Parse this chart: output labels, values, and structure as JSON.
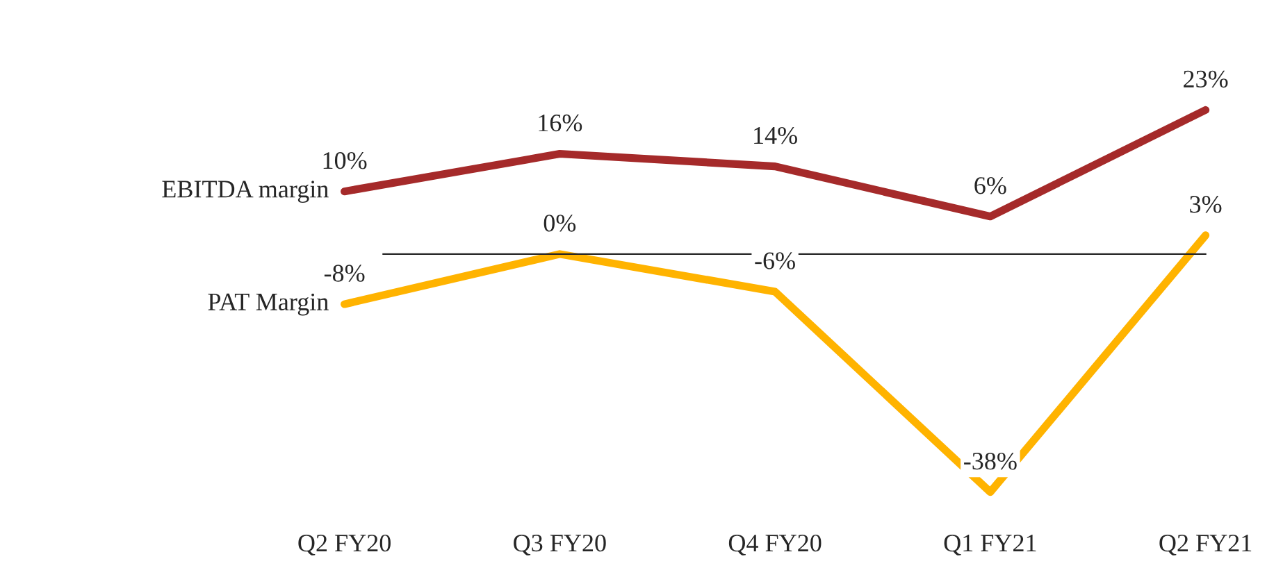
{
  "chart_data": {
    "type": "line",
    "categories": [
      "Q2 FY20",
      "Q3 FY20",
      "Q4 FY20",
      "Q1 FY21",
      "Q2 FY21"
    ],
    "series": [
      {
        "name": "EBITDA margin",
        "color": "#a52a2a",
        "values": [
          10,
          16,
          14,
          6,
          23
        ],
        "value_labels": [
          "10%",
          "16%",
          "14%",
          "6%",
          "23%"
        ]
      },
      {
        "name": "PAT Margin",
        "color": "#ffb300",
        "values": [
          -8,
          0,
          -6,
          -38,
          3
        ],
        "value_labels": [
          "-8%",
          "0%",
          "-6%",
          "-38%",
          "3%"
        ]
      }
    ],
    "marker": "none",
    "line_style": "solid",
    "grid": false,
    "legend": false
  }
}
